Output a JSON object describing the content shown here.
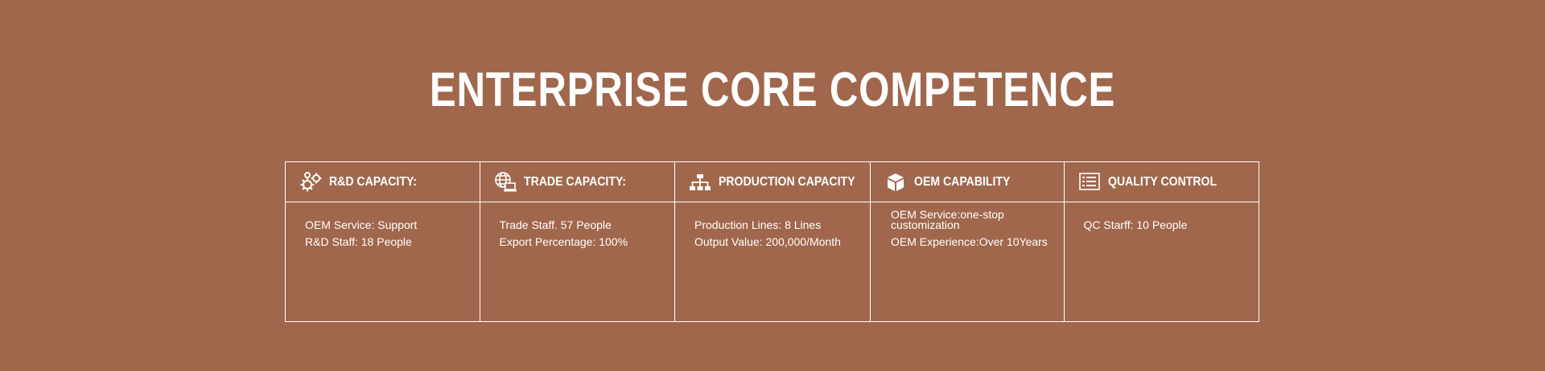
{
  "header": {
    "title": "ENTERPRISE CORE COMPETENCE"
  },
  "capabilities": [
    {
      "icon": "gears-icon",
      "title": "R&D CAPACITY:",
      "lines": [
        "OEM Service: Support",
        "R&D Staff: 18 People"
      ]
    },
    {
      "icon": "globe-laptop-icon",
      "title": "TRADE CAPACITY:",
      "lines": [
        "Trade Staff. 57 People",
        "Export Percentage: 100%"
      ]
    },
    {
      "icon": "org-chart-icon",
      "title": "PRODUCTION CAPACITY",
      "lines": [
        "Production Lines: 8 Lines",
        "Output Value: 200,000/Month"
      ]
    },
    {
      "icon": "box-icon",
      "title": "OEM CAPABILITY",
      "lines": [
        "OEM Service:one-stop customization",
        "OEM Experience:Over 10Years"
      ]
    },
    {
      "icon": "checklist-icon",
      "title": "QUALITY CONTROL",
      "lines": [
        "QC Starff: 10 People"
      ]
    }
  ]
}
